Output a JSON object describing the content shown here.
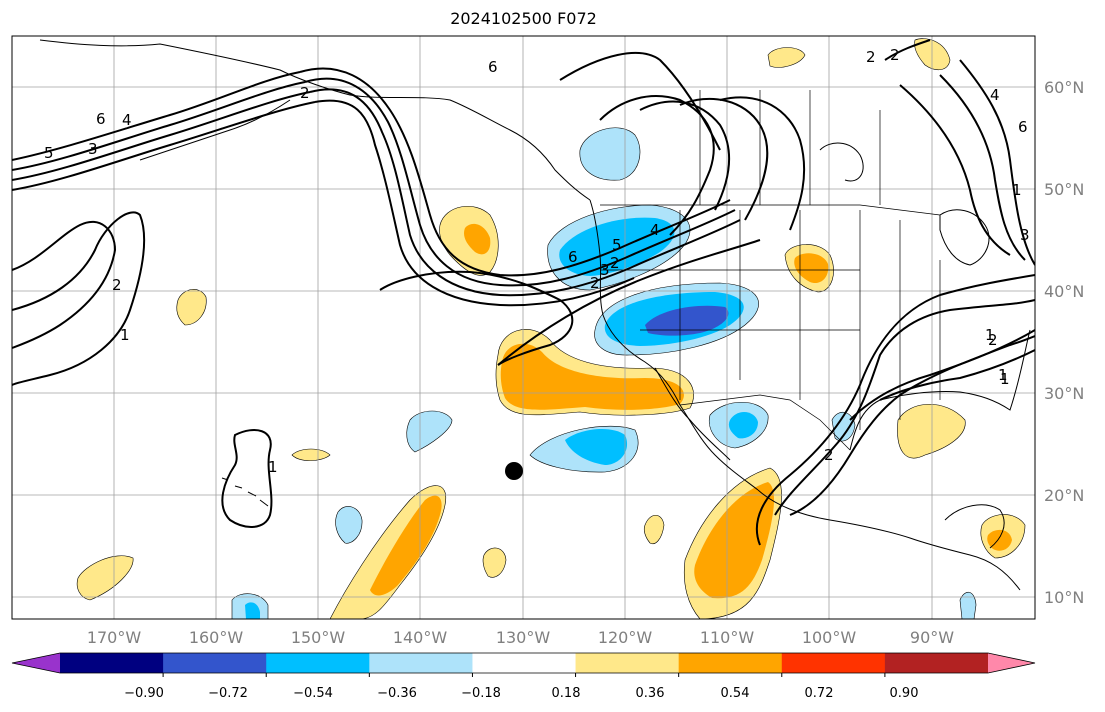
{
  "title": "2024102500 F072",
  "map": {
    "lon_ticks": [
      "170°W",
      "160°W",
      "150°W",
      "140°W",
      "130°W",
      "120°W",
      "110°W",
      "100°W",
      "90°W"
    ],
    "lat_ticks": [
      "60°N",
      "50°N",
      "40°N",
      "30°N",
      "20°N",
      "10°N"
    ],
    "contour_labels": [
      "6",
      "5",
      "4",
      "3",
      "2",
      "1",
      "2",
      "6",
      "2",
      "1",
      "2",
      "1",
      "1",
      "1",
      "2",
      "3",
      "4",
      "5",
      "6",
      "2",
      "4",
      "6",
      "3",
      "2",
      "1",
      "2"
    ],
    "marker": "black-dot"
  },
  "colorbar": {
    "ticks": [
      "−0.90",
      "−0.72",
      "−0.54",
      "−0.36",
      "−0.18",
      "0.18",
      "0.36",
      "0.54",
      "0.72",
      "0.90"
    ],
    "colors": [
      "#9933cc",
      "#000080",
      "#3355cc",
      "#00bfff",
      "#aee3fa",
      "#ffffff",
      "#ffe88a",
      "#ffa500",
      "#ff3300",
      "#b22222",
      "#ff88aa"
    ]
  }
}
